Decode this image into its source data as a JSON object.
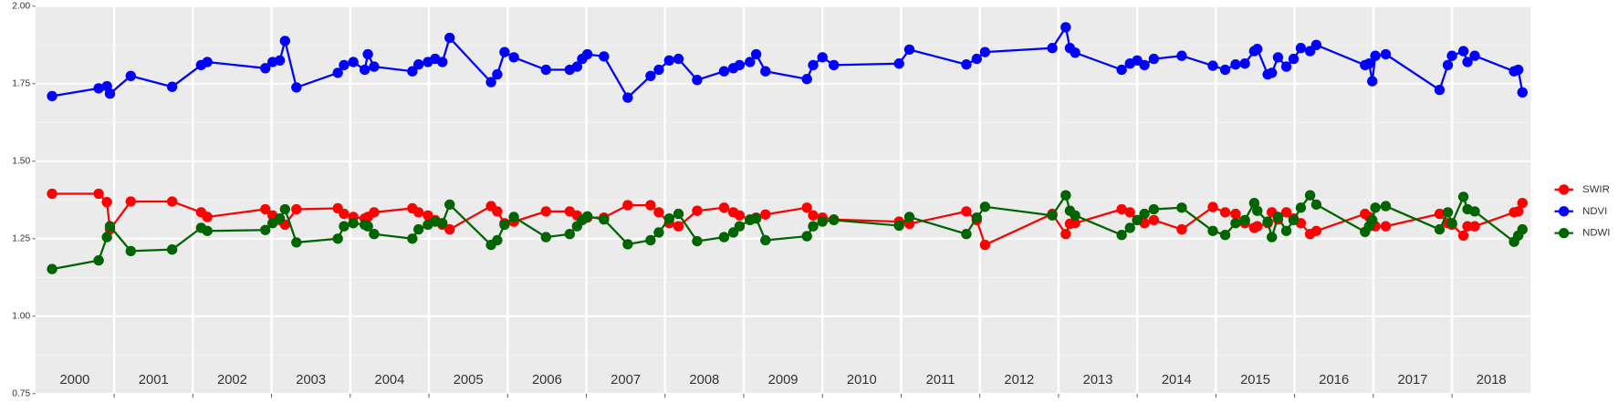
{
  "chart_data": {
    "type": "line",
    "x": [
      2000.211,
      2000.803,
      2000.908,
      2000.947,
      2001.211,
      2001.737,
      2002.105,
      2002.184,
      2002.921,
      2003.013,
      2003.105,
      2003.171,
      2003.316,
      2003.842,
      2003.921,
      2004.039,
      2004.184,
      2004.224,
      2004.303,
      2004.789,
      2004.868,
      2004.987,
      2005.079,
      2005.171,
      2005.263,
      2005.789,
      2005.868,
      2005.961,
      2006.079,
      2006.487,
      2006.789,
      2006.882,
      2006.947,
      2007.013,
      2007.224,
      2007.526,
      2007.816,
      2007.921,
      2008.053,
      2008.171,
      2008.408,
      2008.75,
      2008.868,
      2008.947,
      2009.079,
      2009.158,
      2009.276,
      2009.803,
      2009.882,
      2010.0,
      2010.145,
      2010.974,
      2011.105,
      2011.829,
      2011.961,
      2012.066,
      2012.921,
      2013.092,
      2013.145,
      2013.211,
      2013.803,
      2013.908,
      2014.0,
      2014.092,
      2014.211,
      2014.566,
      2014.961,
      2015.118,
      2015.25,
      2015.368,
      2015.487,
      2015.526,
      2015.658,
      2015.711,
      2015.789,
      2015.895,
      2015.987,
      2016.079,
      2016.197,
      2016.276,
      2016.895,
      2016.947,
      2016.987,
      2017.026,
      2017.158,
      2017.842,
      2017.947,
      2018.0,
      2018.145,
      2018.197,
      2018.289,
      2018.789,
      2018.842,
      2018.895
    ],
    "series": [
      {
        "name": "SWIR",
        "color": "#ff0000",
        "values": [
          1.395,
          1.395,
          1.368,
          1.28,
          1.37,
          1.37,
          1.335,
          1.32,
          1.345,
          1.325,
          1.31,
          1.295,
          1.345,
          1.348,
          1.33,
          1.32,
          1.315,
          1.32,
          1.335,
          1.348,
          1.335,
          1.325,
          1.31,
          1.295,
          1.28,
          1.355,
          1.338,
          1.3,
          1.305,
          1.338,
          1.338,
          1.325,
          1.31,
          1.318,
          1.318,
          1.358,
          1.358,
          1.335,
          1.3,
          1.29,
          1.34,
          1.35,
          1.335,
          1.325,
          1.312,
          1.318,
          1.328,
          1.35,
          1.325,
          1.318,
          1.312,
          1.305,
          1.298,
          1.338,
          1.31,
          1.23,
          1.33,
          1.265,
          1.298,
          1.3,
          1.345,
          1.335,
          1.31,
          1.3,
          1.31,
          1.28,
          1.352,
          1.335,
          1.33,
          1.3,
          1.285,
          1.29,
          1.3,
          1.335,
          1.312,
          1.335,
          1.315,
          1.3,
          1.265,
          1.275,
          1.33,
          1.32,
          1.3,
          1.29,
          1.29,
          1.33,
          1.3,
          1.295,
          1.26,
          1.29,
          1.29,
          1.335,
          1.338,
          1.365
        ]
      },
      {
        "name": "NDVI",
        "color": "#0000ff",
        "values": [
          1.71,
          1.735,
          1.742,
          1.718,
          1.775,
          1.74,
          1.81,
          1.82,
          1.8,
          1.82,
          1.825,
          1.888,
          1.738,
          1.785,
          1.81,
          1.82,
          1.795,
          1.845,
          1.805,
          1.79,
          1.812,
          1.82,
          1.83,
          1.82,
          1.898,
          1.755,
          1.78,
          1.852,
          1.835,
          1.795,
          1.795,
          1.805,
          1.83,
          1.845,
          1.838,
          1.705,
          1.775,
          1.795,
          1.825,
          1.83,
          1.762,
          1.79,
          1.8,
          1.81,
          1.82,
          1.845,
          1.79,
          1.765,
          1.81,
          1.835,
          1.81,
          1.815,
          1.86,
          1.812,
          1.83,
          1.852,
          1.865,
          1.932,
          1.865,
          1.85,
          1.795,
          1.815,
          1.825,
          1.81,
          1.83,
          1.84,
          1.808,
          1.795,
          1.812,
          1.815,
          1.855,
          1.862,
          1.78,
          1.785,
          1.835,
          1.805,
          1.83,
          1.865,
          1.855,
          1.875,
          1.81,
          1.815,
          1.758,
          1.84,
          1.845,
          1.73,
          1.81,
          1.84,
          1.855,
          1.82,
          1.84,
          1.79,
          1.795,
          1.722
        ]
      },
      {
        "name": "NDWI",
        "color": "#006400",
        "values": [
          1.152,
          1.18,
          1.255,
          1.29,
          1.21,
          1.215,
          1.285,
          1.275,
          1.278,
          1.3,
          1.315,
          1.345,
          1.238,
          1.25,
          1.29,
          1.3,
          1.295,
          1.29,
          1.265,
          1.25,
          1.28,
          1.295,
          1.305,
          1.3,
          1.36,
          1.23,
          1.245,
          1.295,
          1.32,
          1.255,
          1.265,
          1.29,
          1.31,
          1.322,
          1.312,
          1.232,
          1.245,
          1.27,
          1.315,
          1.33,
          1.242,
          1.255,
          1.27,
          1.29,
          1.31,
          1.315,
          1.245,
          1.258,
          1.29,
          1.305,
          1.31,
          1.292,
          1.32,
          1.265,
          1.318,
          1.353,
          1.325,
          1.39,
          1.34,
          1.325,
          1.262,
          1.285,
          1.31,
          1.33,
          1.345,
          1.35,
          1.275,
          1.262,
          1.3,
          1.31,
          1.365,
          1.34,
          1.305,
          1.255,
          1.32,
          1.275,
          1.31,
          1.35,
          1.39,
          1.36,
          1.272,
          1.29,
          1.31,
          1.35,
          1.355,
          1.28,
          1.335,
          1.3,
          1.385,
          1.345,
          1.338,
          1.24,
          1.26,
          1.28
        ]
      }
    ],
    "xlim": [
      2000,
      2019
    ],
    "xticks": [
      2001,
      2002,
      2003,
      2004,
      2005,
      2006,
      2007,
      2008,
      2009,
      2010,
      2011,
      2012,
      2013,
      2014,
      2015,
      2016,
      2017,
      2018
    ],
    "year_labels": [
      2000,
      2001,
      2002,
      2003,
      2004,
      2005,
      2006,
      2007,
      2008,
      2009,
      2010,
      2011,
      2012,
      2013,
      2014,
      2015,
      2016,
      2017,
      2018
    ],
    "ylim": [
      0.75,
      2.0
    ],
    "yticks": [
      {
        "value": 0.75,
        "label": "0.75"
      },
      {
        "value": 1.0,
        "label": "1.00"
      },
      {
        "value": 1.25,
        "label": "1.25"
      },
      {
        "value": 1.5,
        "label": "1.50"
      },
      {
        "value": 1.75,
        "label": "1.75"
      },
      {
        "value": 2.0,
        "label": "2.00"
      }
    ],
    "grid": true,
    "legend": "right"
  }
}
